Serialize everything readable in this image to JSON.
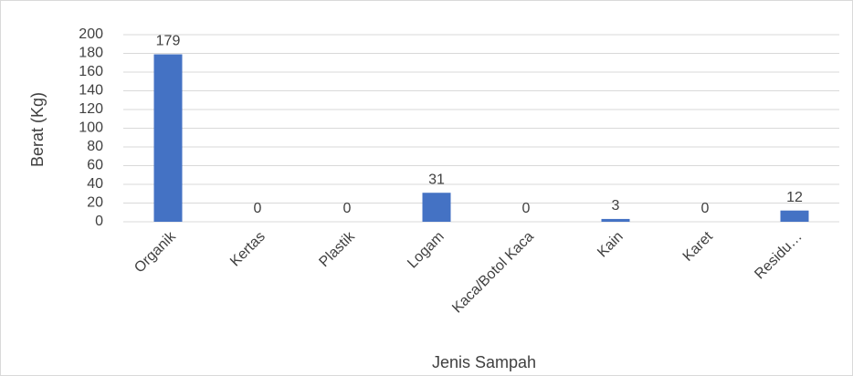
{
  "chart_data": {
    "type": "bar",
    "categories": [
      "Organik",
      "Kertas",
      "Plastik",
      "Logam",
      "Kaca/Botol Kaca",
      "Kain",
      "Karet",
      "Residu…"
    ],
    "values": [
      179,
      0,
      0,
      31,
      0,
      3,
      0,
      12
    ],
    "color": "#4472c4",
    "ylim": [
      0,
      200
    ],
    "yticks": [
      0,
      20,
      40,
      60,
      80,
      100,
      120,
      140,
      160,
      180,
      200
    ],
    "grid": true,
    "data_labels": true,
    "x_label": "Jenis Sampah",
    "y_label": "Berat (Kg)"
  }
}
